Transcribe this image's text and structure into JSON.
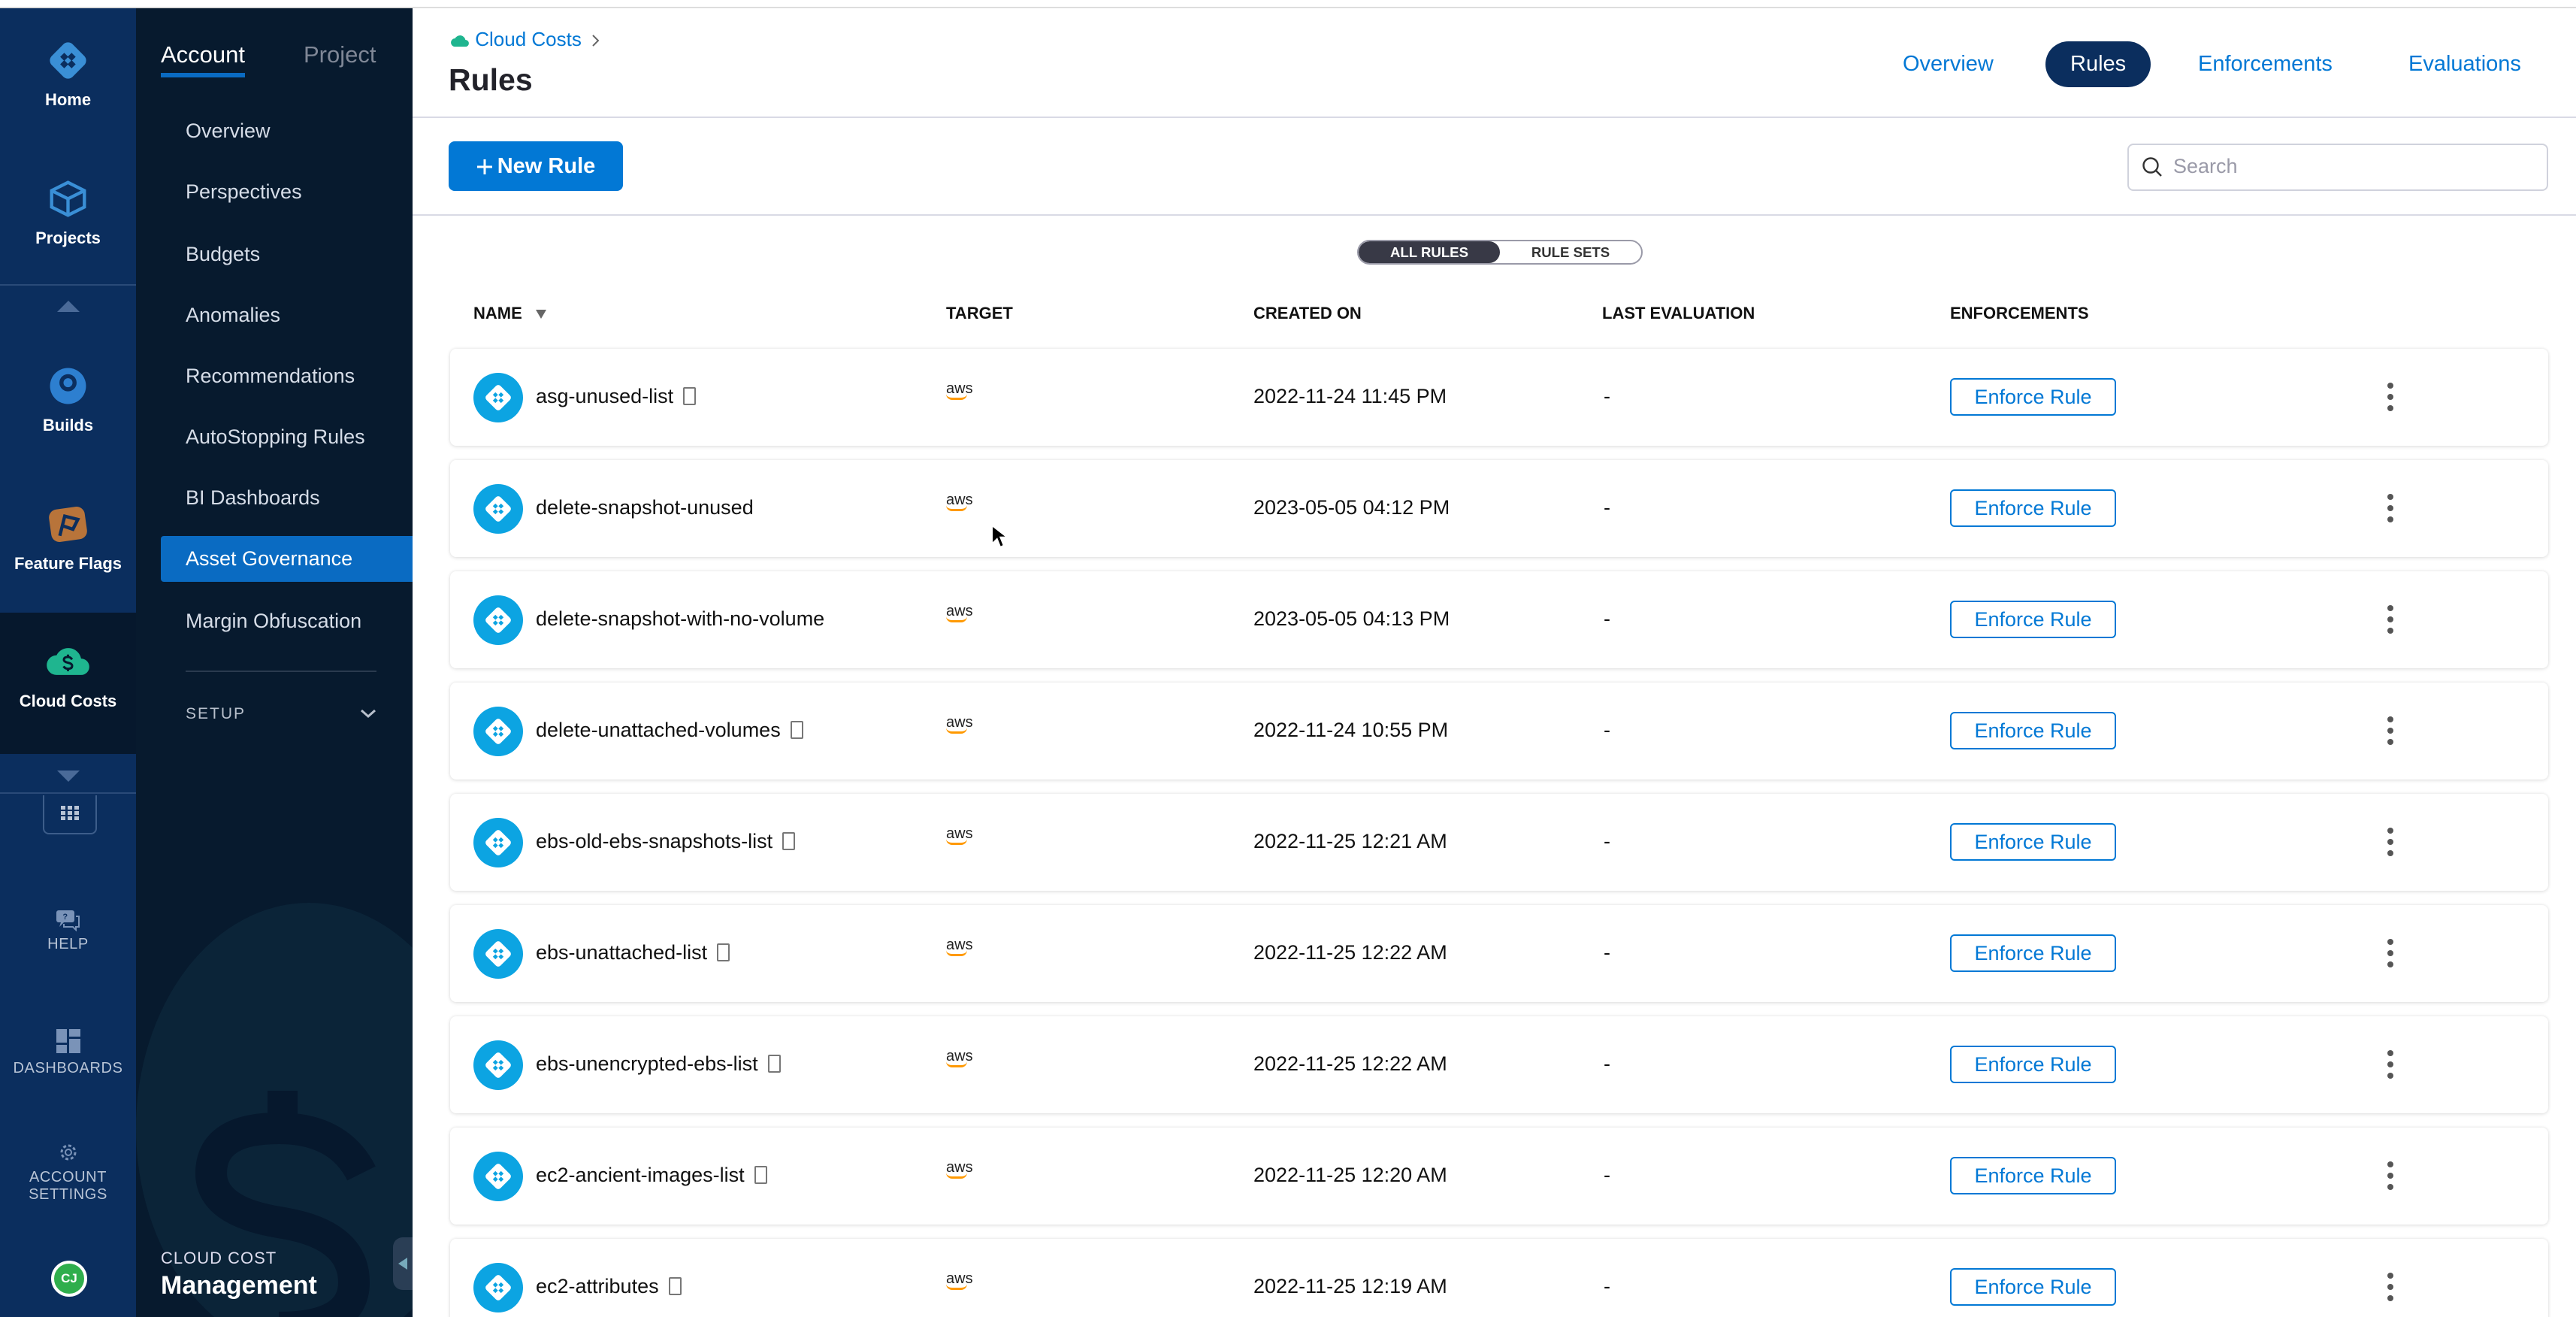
{
  "nav_primary": {
    "items": [
      {
        "label": "Home",
        "icon": "harness-logo-icon"
      },
      {
        "label": "Projects",
        "icon": "cube-icon"
      },
      {
        "label": "Builds",
        "icon": "builds-icon"
      },
      {
        "label": "Feature Flags",
        "icon": "flag-icon"
      },
      {
        "label": "Cloud Costs",
        "icon": "cloud-dollar-icon",
        "active": true
      }
    ],
    "bottom": [
      {
        "label": "HELP",
        "icon": "help-icon"
      },
      {
        "label": "DASHBOARDS",
        "icon": "dashboards-icon"
      },
      {
        "label": "ACCOUNT SETTINGS",
        "icon": "gear-icon"
      }
    ],
    "avatar": "CJ"
  },
  "nav_secondary": {
    "tabs": [
      "Account",
      "Project"
    ],
    "active_tab": "Account",
    "items": [
      "Overview",
      "Perspectives",
      "Budgets",
      "Anomalies",
      "Recommendations",
      "AutoStopping Rules",
      "BI Dashboards",
      "Asset Governance",
      "Margin Obfuscation"
    ],
    "selected": "Asset Governance",
    "setup": "SETUP",
    "footer_small": "CLOUD COST",
    "footer_big": "Management"
  },
  "header": {
    "breadcrumb": "Cloud Costs",
    "title": "Rules",
    "tabs": [
      "Overview",
      "Rules",
      "Enforcements",
      "Evaluations"
    ],
    "active_tab": "Rules"
  },
  "toolbar": {
    "new_rule": "New Rule",
    "search_placeholder": "Search"
  },
  "toggle": {
    "options": [
      "ALL RULES",
      "RULE SETS"
    ],
    "selected": "ALL RULES"
  },
  "table": {
    "columns": [
      "NAME",
      "TARGET",
      "CREATED ON",
      "LAST EVALUATION",
      "ENFORCEMENTS"
    ],
    "sort": "NAME descending",
    "rows": [
      {
        "name": "asg-unused-list",
        "doc": true,
        "target": "aws",
        "created": "2022-11-24 11:45 PM",
        "last": "-",
        "action": "Enforce Rule"
      },
      {
        "name": "delete-snapshot-unused",
        "doc": false,
        "target": "aws",
        "created": "2023-05-05 04:12 PM",
        "last": "-",
        "action": "Enforce Rule"
      },
      {
        "name": "delete-snapshot-with-no-volume",
        "doc": false,
        "target": "aws",
        "created": "2023-05-05 04:13 PM",
        "last": "-",
        "action": "Enforce Rule"
      },
      {
        "name": "delete-unattached-volumes",
        "doc": true,
        "target": "aws",
        "created": "2022-11-24 10:55 PM",
        "last": "-",
        "action": "Enforce Rule"
      },
      {
        "name": "ebs-old-ebs-snapshots-list",
        "doc": true,
        "target": "aws",
        "created": "2022-11-25 12:21 AM",
        "last": "-",
        "action": "Enforce Rule"
      },
      {
        "name": "ebs-unattached-list",
        "doc": true,
        "target": "aws",
        "created": "2022-11-25 12:22 AM",
        "last": "-",
        "action": "Enforce Rule"
      },
      {
        "name": "ebs-unencrypted-ebs-list",
        "doc": true,
        "target": "aws",
        "created": "2022-11-25 12:22 AM",
        "last": "-",
        "action": "Enforce Rule"
      },
      {
        "name": "ec2-ancient-images-list",
        "doc": true,
        "target": "aws",
        "created": "2022-11-25 12:20 AM",
        "last": "-",
        "action": "Enforce Rule"
      },
      {
        "name": "ec2-attributes",
        "doc": true,
        "target": "aws",
        "created": "2022-11-25 12:19 AM",
        "last": "-",
        "action": "Enforce Rule"
      }
    ]
  },
  "colors": {
    "primary": "#0278d5",
    "nav_dark": "#0b2e5e",
    "nav_darker": "#071a2e",
    "rule_icon": "#0ca4e2",
    "aws_orange": "#ff9900"
  }
}
